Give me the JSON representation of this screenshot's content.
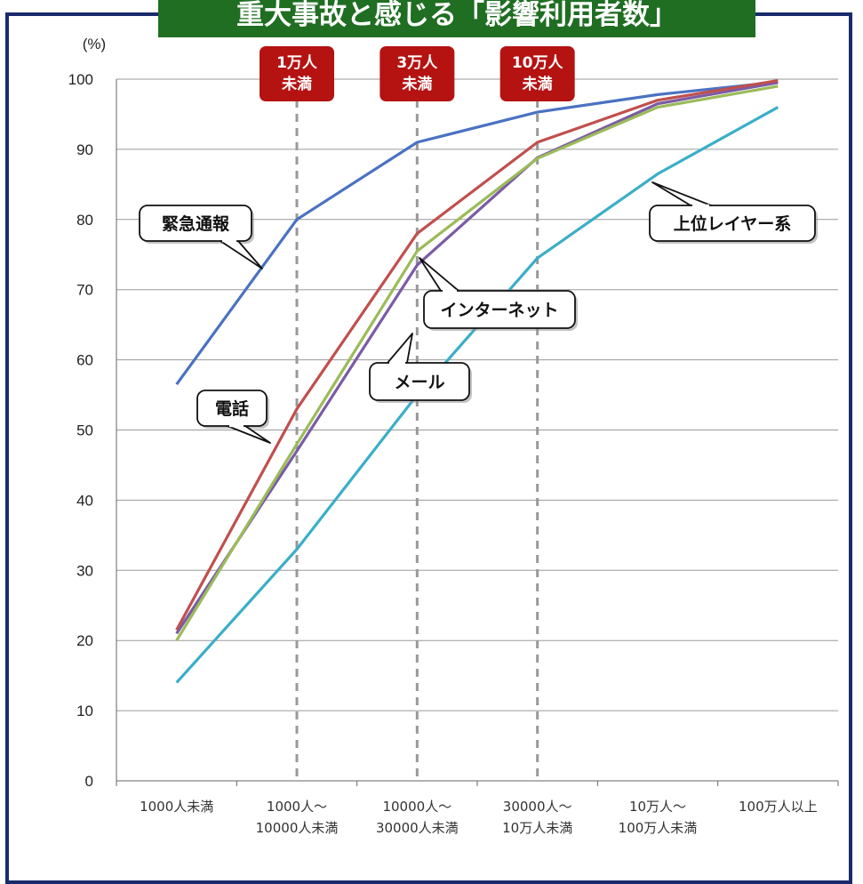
{
  "title": "重大事故と感じる「影響利用者数」",
  "chart_data": {
    "type": "line",
    "y_unit": "(%)",
    "ylim": [
      0,
      100
    ],
    "yticks": [
      0,
      10,
      20,
      30,
      40,
      50,
      60,
      70,
      80,
      90,
      100
    ],
    "grid": true,
    "categories": [
      [
        "1000人未満"
      ],
      [
        "1000人～",
        "10000人未満"
      ],
      [
        "10000人～",
        "30000人未満"
      ],
      [
        "30000人～",
        "10万人未満"
      ],
      [
        "10万人～",
        "100万人未満"
      ],
      [
        "100万人以上"
      ]
    ],
    "series": [
      {
        "name": "緊急通報",
        "color": "#4a72c2",
        "values": [
          56.5,
          80,
          91,
          95.3,
          97.8,
          99.6
        ]
      },
      {
        "name": "電話",
        "color": "#c0504d",
        "values": [
          21.5,
          53,
          78,
          91,
          97,
          99.8
        ]
      },
      {
        "name": "インターネット",
        "color": "#9bbb59",
        "values": [
          20,
          48,
          75.5,
          88.7,
          96,
          99
        ]
      },
      {
        "name": "メール",
        "color": "#7b5ba6",
        "values": [
          21,
          47,
          73.5,
          88.8,
          96.5,
          99.5
        ]
      },
      {
        "name": "上位レイヤー系",
        "color": "#3aaec8",
        "values": [
          14,
          33,
          55,
          74.5,
          86.5,
          96
        ]
      }
    ],
    "markers": [
      {
        "lines": [
          "1万人",
          "未満"
        ],
        "category_index": 1
      },
      {
        "lines": [
          "3万人",
          "未満"
        ],
        "category_index": 2
      },
      {
        "lines": [
          "10万人",
          "未満"
        ],
        "category_index": 3
      }
    ]
  }
}
